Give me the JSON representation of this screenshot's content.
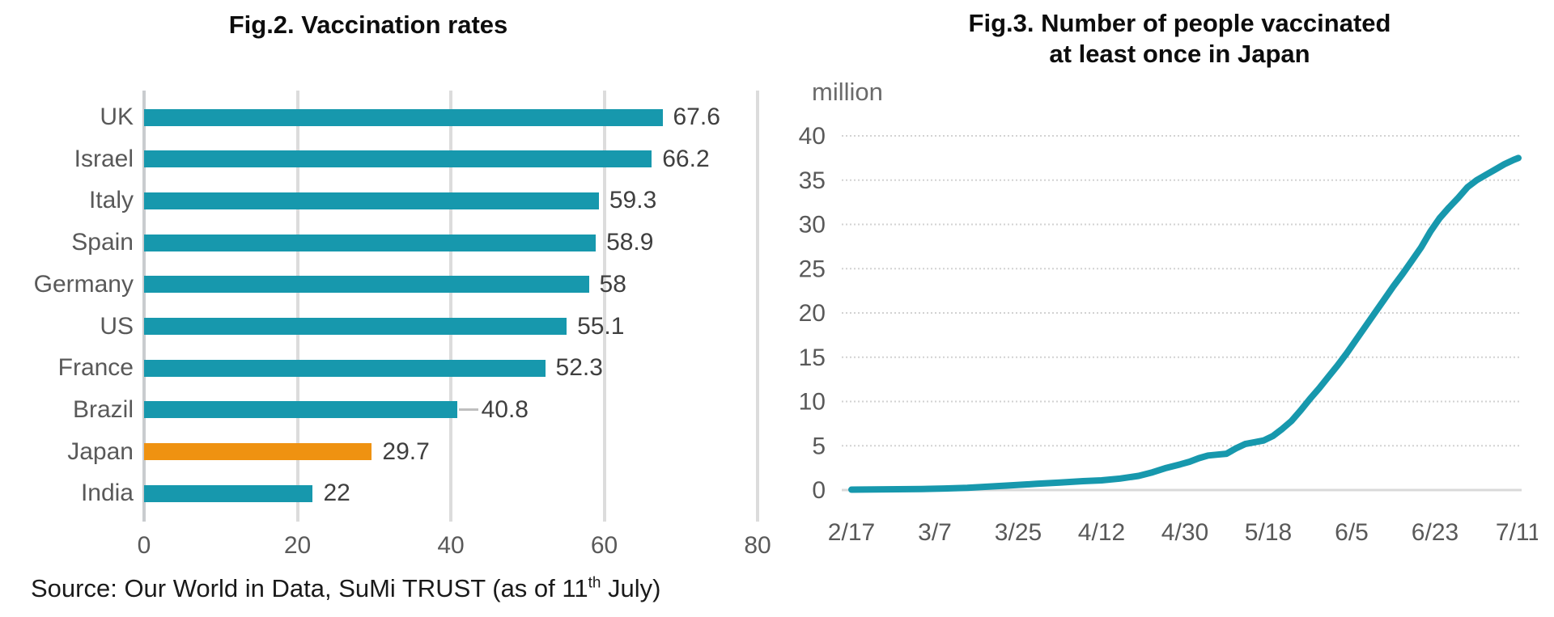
{
  "fig2": {
    "title": "Fig.2. Vaccination rates"
  },
  "fig3": {
    "title_line1": "Fig.3. Number of people vaccinated",
    "title_line2": "at least once in Japan",
    "unit_label": "million"
  },
  "chart_data": [
    {
      "type": "bar",
      "orientation": "horizontal",
      "title": "Fig.2. Vaccination rates",
      "categories": [
        "UK",
        "Israel",
        "Italy",
        "Spain",
        "Germany",
        "US",
        "France",
        "Brazil",
        "Japan",
        "India"
      ],
      "values": [
        67.6,
        66.2,
        59.3,
        58.9,
        58,
        55.1,
        52.3,
        40.8,
        29.7,
        22
      ],
      "value_labels": [
        "67.6",
        "66.2",
        "59.3",
        "58.9",
        "58",
        "55.1",
        "52.3",
        "40.8",
        "29.7",
        "22"
      ],
      "highlight_category": "Japan",
      "bar_color": "#1798AD",
      "highlight_color": "#EF9211",
      "xticks": [
        0,
        20,
        40,
        60,
        80
      ],
      "xlim": [
        0,
        80
      ],
      "grid": "vertical"
    },
    {
      "type": "line",
      "title": "Fig.3. Number of people vaccinated at least once in Japan",
      "unit": "million",
      "line_color": "#1798AD",
      "yticks": [
        0,
        5,
        10,
        15,
        20,
        25,
        30,
        35,
        40
      ],
      "ylim": [
        0,
        40
      ],
      "x_tick_labels": [
        "2/17",
        "3/7",
        "3/25",
        "4/12",
        "4/30",
        "5/18",
        "6/5",
        "6/23",
        "7/11"
      ],
      "grid": "horizontal-dotted",
      "series": [
        {
          "name": "People vaccinated at least once in Japan (million)",
          "points": [
            [
              "2/17",
              0.05
            ],
            [
              "2/22",
              0.07
            ],
            [
              "2/27",
              0.09
            ],
            [
              "3/4",
              0.12
            ],
            [
              "3/9",
              0.17
            ],
            [
              "3/14",
              0.25
            ],
            [
              "3/19",
              0.4
            ],
            [
              "3/24",
              0.55
            ],
            [
              "3/29",
              0.7
            ],
            [
              "4/3",
              0.85
            ],
            [
              "4/8",
              1.0
            ],
            [
              "4/12",
              1.1
            ],
            [
              "4/16",
              1.3
            ],
            [
              "4/20",
              1.6
            ],
            [
              "4/23",
              2.0
            ],
            [
              "4/26",
              2.5
            ],
            [
              "4/29",
              2.9
            ],
            [
              "5/1",
              3.2
            ],
            [
              "5/3",
              3.6
            ],
            [
              "5/5",
              3.9
            ],
            [
              "5/7",
              4.0
            ],
            [
              "5/9",
              4.1
            ],
            [
              "5/11",
              4.7
            ],
            [
              "5/13",
              5.2
            ],
            [
              "5/15",
              5.4
            ],
            [
              "5/17",
              5.6
            ],
            [
              "5/19",
              6.1
            ],
            [
              "5/21",
              6.9
            ],
            [
              "5/23",
              7.8
            ],
            [
              "5/25",
              9.0
            ],
            [
              "5/27",
              10.3
            ],
            [
              "5/29",
              11.5
            ],
            [
              "5/31",
              12.8
            ],
            [
              "6/2",
              14.1
            ],
            [
              "6/4",
              15.5
            ],
            [
              "6/6",
              17.0
            ],
            [
              "6/8",
              18.5
            ],
            [
              "6/10",
              20.0
            ],
            [
              "6/12",
              21.5
            ],
            [
              "6/14",
              23.0
            ],
            [
              "6/16",
              24.4
            ],
            [
              "6/18",
              25.9
            ],
            [
              "6/20",
              27.4
            ],
            [
              "6/22",
              29.2
            ],
            [
              "6/24",
              30.7
            ],
            [
              "6/26",
              31.9
            ],
            [
              "6/28",
              33.0
            ],
            [
              "6/30",
              34.2
            ],
            [
              "7/2",
              35.0
            ],
            [
              "7/4",
              35.6
            ],
            [
              "7/6",
              36.2
            ],
            [
              "7/8",
              36.8
            ],
            [
              "7/10",
              37.3
            ],
            [
              "7/11",
              37.5
            ]
          ]
        }
      ]
    }
  ],
  "source": {
    "prefix": "Source: Our World in Data, SuMi TRUST (as of 11",
    "superscript": "th",
    "suffix": " July)"
  }
}
